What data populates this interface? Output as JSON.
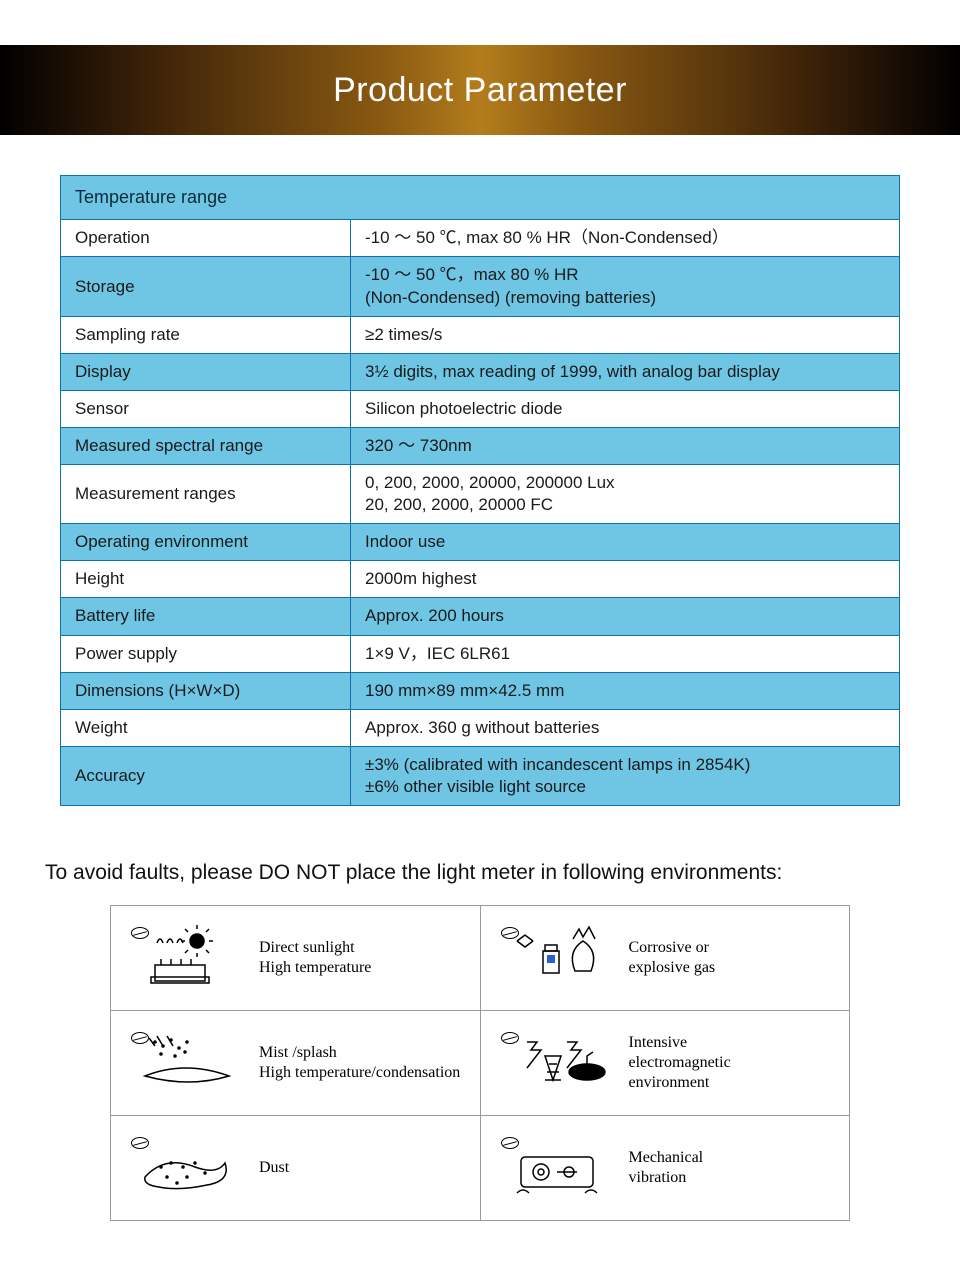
{
  "header": {
    "title": "Product Parameter"
  },
  "colors": {
    "table_border": "#1073a8",
    "row_alt_bg": "#6ec5e4",
    "row_plain_bg": "#ffffff",
    "header_text": "#ffffff",
    "body_text": "#1a1a1a",
    "warning_text": "#111111",
    "env_border": "#9a9a9a",
    "band_gradient": [
      "#000000",
      "#3a2008",
      "#8a5a12",
      "#b37d1c",
      "#8a5a12",
      "#3a2008",
      "#000000"
    ]
  },
  "param_table": {
    "section": "Temperature range",
    "rows": [
      {
        "label": "Operation",
        "value": "-10 ～ 50 ℃, max 80 % HR（Non-Condensed）",
        "alt": false
      },
      {
        "label": "Storage",
        "value": "-10 ～ 50 ℃，max 80 % HR\n (Non-Condensed) (removing batteries)",
        "alt": true
      },
      {
        "label": "Sampling rate",
        "value": "≥2 times/s",
        "alt": false
      },
      {
        "label": "Display",
        "value": "3½ digits, max reading of 1999, with analog bar display",
        "alt": true
      },
      {
        "label": "Sensor",
        "value": "Silicon photoelectric diode",
        "alt": false
      },
      {
        "label": "Measured spectral range",
        "value": "320 ～ 730nm",
        "alt": true
      },
      {
        "label": "Measurement ranges",
        "value": "0, 200, 2000, 20000, 200000 Lux\n20, 200, 2000, 20000 FC",
        "alt": false
      },
      {
        "label": "Operating environment",
        "value": "Indoor use",
        "alt": true
      },
      {
        "label": "Height",
        "value": "2000m  highest",
        "alt": false
      },
      {
        "label": "Battery life",
        "value": "Approx. 200 hours",
        "alt": true
      },
      {
        "label": "Power supply",
        "value": "1×9 V，IEC 6LR61",
        "alt": false
      },
      {
        "label": "Dimensions (H×W×D)",
        "value": "190 mm×89 mm×42.5 mm",
        "alt": true
      },
      {
        "label": "Weight",
        "value": "Approx. 360 g without batteries",
        "alt": false
      },
      {
        "label": "Accuracy",
        "value": "±3% (calibrated with incandescent lamps in 2854K)\n±6% other visible light source",
        "alt": true
      }
    ]
  },
  "warning": "To avoid faults, please DO NOT place the light meter in following environments:",
  "environments": [
    {
      "label": "Direct sunlight\nHigh temperature",
      "icon": "sun-heat"
    },
    {
      "label": "Corrosive       or\nexplosive gas",
      "icon": "gas"
    },
    {
      "label": "Mist /splash\nHigh temperature/condensation",
      "icon": "mist"
    },
    {
      "label": "Intensive\nelectromagnetic\nenvironment",
      "icon": "emi"
    },
    {
      "label": "Dust",
      "icon": "dust"
    },
    {
      "label": "Mechanical\nvibration",
      "icon": "vibration"
    }
  ]
}
